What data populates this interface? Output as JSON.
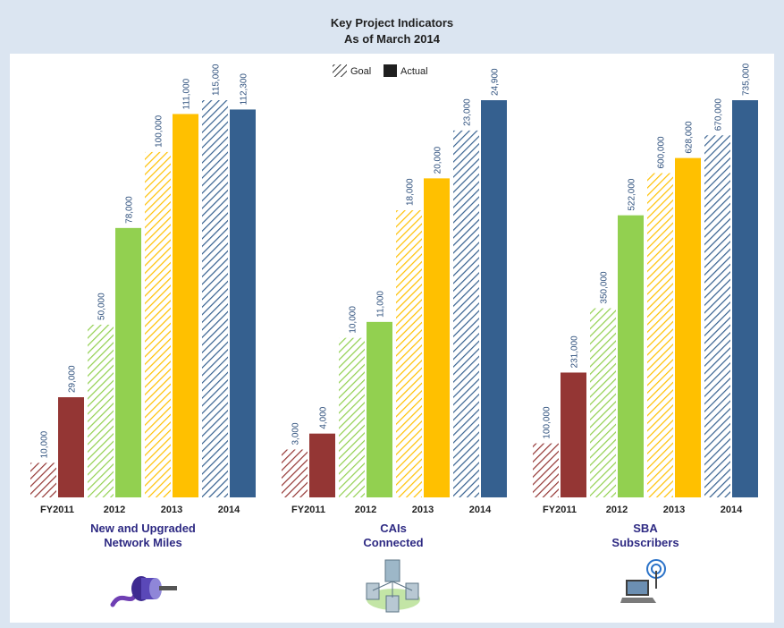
{
  "header": {
    "title": "Key Project Indicators",
    "subtitle": "As of March 2014"
  },
  "legend": {
    "goal": "Goal",
    "actual": "Actual"
  },
  "colors": {
    "FY2011": "#943634",
    "2012": "#92d050",
    "2013": "#ffc000",
    "2014": "#35608f",
    "value_label": "#2d4f7c",
    "panel_label": "#2e2a83"
  },
  "icons": [
    "network-cable-icon",
    "connected-computers-icon",
    "wireless-laptop-icon"
  ],
  "chart_data": [
    {
      "type": "bar",
      "title": "New and Upgraded Network Miles",
      "title_lines": [
        "New and Upgraded",
        "Network Miles"
      ],
      "categories": [
        "FY2011",
        "2012",
        "2013",
        "2014"
      ],
      "series": [
        {
          "name": "Goal",
          "values": [
            10000,
            50000,
            100000,
            115000
          ],
          "labels": [
            "10,000",
            "50,000",
            "100,000",
            "115,000"
          ]
        },
        {
          "name": "Actual",
          "values": [
            29000,
            78000,
            111000,
            112300
          ],
          "labels": [
            "29,000",
            "78,000",
            "111,000",
            "112,300"
          ]
        }
      ],
      "ylim": [
        0,
        115000
      ]
    },
    {
      "type": "bar",
      "title": "CAIs Connected",
      "title_lines": [
        "CAIs",
        "Connected"
      ],
      "categories": [
        "FY2011",
        "2012",
        "2013",
        "2014"
      ],
      "series": [
        {
          "name": "Goal",
          "values": [
            3000,
            10000,
            18000,
            23000
          ],
          "labels": [
            "3,000",
            "10,000",
            "18,000",
            "23,000"
          ]
        },
        {
          "name": "Actual",
          "values": [
            4000,
            11000,
            20000,
            24900
          ],
          "labels": [
            "4,000",
            "11,000",
            "20,000",
            "24,900"
          ]
        }
      ],
      "ylim": [
        0,
        24900
      ]
    },
    {
      "type": "bar",
      "title": "SBA Subscribers",
      "title_lines": [
        "SBA",
        "Subscribers"
      ],
      "categories": [
        "FY2011",
        "2012",
        "2013",
        "2014"
      ],
      "series": [
        {
          "name": "Goal",
          "values": [
            100000,
            350000,
            600000,
            670000
          ],
          "labels": [
            "100,000",
            "350,000",
            "600,000",
            "670,000"
          ]
        },
        {
          "name": "Actual",
          "values": [
            231000,
            522000,
            628000,
            735000
          ],
          "labels": [
            "231,000",
            "522,000",
            "628,000",
            "735,000"
          ]
        }
      ],
      "ylim": [
        0,
        735000
      ]
    }
  ]
}
